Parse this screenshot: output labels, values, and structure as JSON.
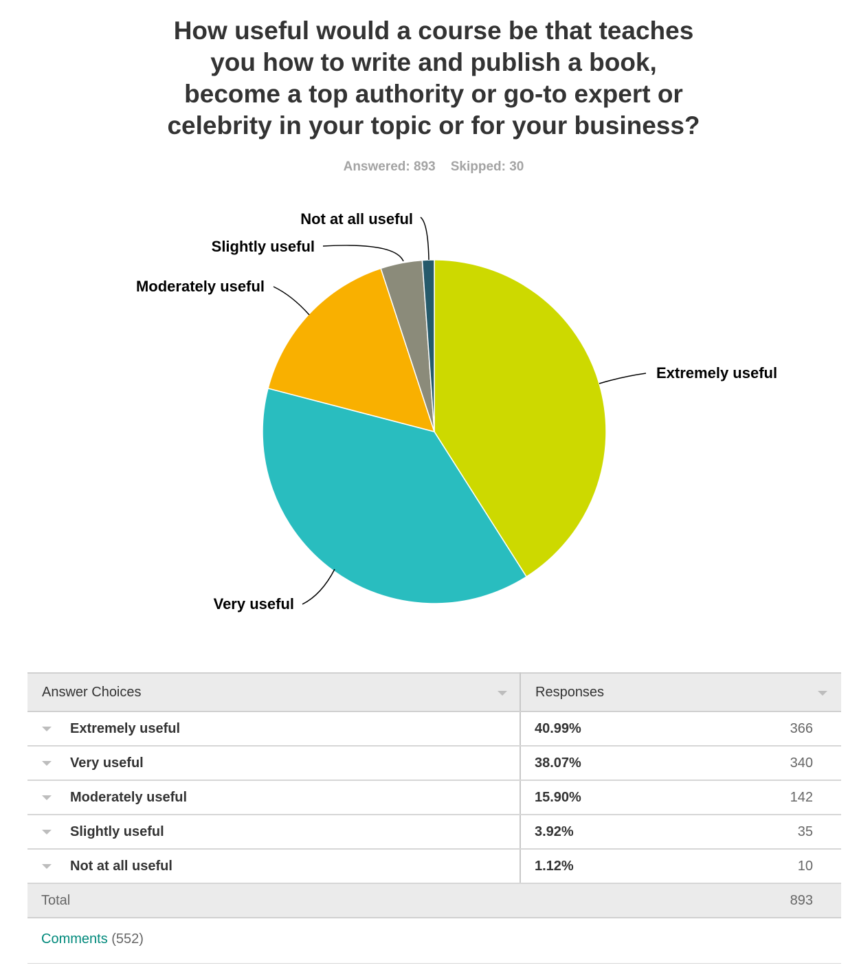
{
  "title_lines": [
    "How useful would a course be that teaches",
    "you how to write and publish a book,",
    "become a top authority or go-to expert or",
    "celebrity in your topic or for your business?"
  ],
  "stats": {
    "answered": "Answered: 893",
    "skipped": "Skipped: 30"
  },
  "chart_data": {
    "type": "pie",
    "title": "How useful would a course be that teaches you how to write and publish a book, become a top authority or go-to expert or celebrity in your topic or for your business?",
    "categories": [
      "Extremely useful",
      "Very useful",
      "Moderately useful",
      "Slightly useful",
      "Not at all useful"
    ],
    "values": [
      40.99,
      38.07,
      15.9,
      3.92,
      1.12
    ],
    "counts": [
      366,
      340,
      142,
      35,
      10
    ],
    "colors": [
      "#cdd900",
      "#29bdbf",
      "#f9b000",
      "#8b8b7a",
      "#255a6b"
    ],
    "legend": "none"
  },
  "table": {
    "headers": {
      "choices": "Answer Choices",
      "responses": "Responses"
    },
    "rows": [
      {
        "choice": "Extremely useful",
        "pct": "40.99%",
        "count": "366"
      },
      {
        "choice": "Very useful",
        "pct": "38.07%",
        "count": "340"
      },
      {
        "choice": "Moderately useful",
        "pct": "15.90%",
        "count": "142"
      },
      {
        "choice": "Slightly useful",
        "pct": "3.92%",
        "count": "35"
      },
      {
        "choice": "Not at all useful",
        "pct": "1.12%",
        "count": "10"
      }
    ],
    "total_label": "Total",
    "total_value": "893"
  },
  "comments": {
    "label": "Comments",
    "count": "(552)"
  }
}
